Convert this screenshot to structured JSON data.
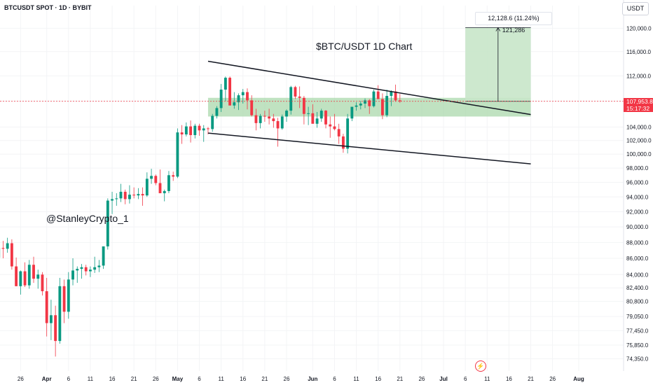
{
  "header": {
    "symbol_label": "BTCUSDT SPOT · 1D · BYBIT"
  },
  "currency_label": "USDT",
  "watermark": "@StanleyCrypto_1",
  "measure_label": "12,128.6 (11.24%) 121,286",
  "last_price": {
    "value": "107,953.8",
    "countdown": "15:17:32"
  },
  "replay_icon": "lightning-icon",
  "colors": {
    "up": "#089981",
    "down": "#f23645",
    "zone": "#a5d6a7",
    "target": "#c8e6c9"
  },
  "chart_data": {
    "type": "candlestick",
    "title": "$BTC/USDT 1D Chart",
    "y_scale": "log",
    "y_range": [
      73500,
      124000
    ],
    "y_ticks": [
      "120,000.0",
      "116,000.0",
      "112,000.0",
      "108,000.0",
      "104,000.0",
      "102,000.0",
      "100,000.0",
      "98,000.0",
      "96,000.0",
      "94,000.0",
      "92,000.0",
      "90,000.0",
      "88,000.0",
      "86,000.0",
      "84,000.0",
      "82,400.0",
      "80,800.0",
      "79,050.0",
      "77,450.0",
      "75,850.0",
      "74,350.0"
    ],
    "x_range": [
      "2025-03-20",
      "2025-08-10"
    ],
    "x_ticks": [
      {
        "label": "26",
        "date": "2025-03-26"
      },
      {
        "label": "Apr",
        "date": "2025-04-01"
      },
      {
        "label": "6",
        "date": "2025-04-06"
      },
      {
        "label": "11",
        "date": "2025-04-11"
      },
      {
        "label": "16",
        "date": "2025-04-16"
      },
      {
        "label": "21",
        "date": "2025-04-21"
      },
      {
        "label": "26",
        "date": "2025-04-26"
      },
      {
        "label": "May",
        "date": "2025-05-01"
      },
      {
        "label": "6",
        "date": "2025-05-06"
      },
      {
        "label": "11",
        "date": "2025-05-11"
      },
      {
        "label": "16",
        "date": "2025-05-16"
      },
      {
        "label": "21",
        "date": "2025-05-21"
      },
      {
        "label": "26",
        "date": "2025-05-26"
      },
      {
        "label": "Jun",
        "date": "2025-06-01"
      },
      {
        "label": "6",
        "date": "2025-06-06"
      },
      {
        "label": "11",
        "date": "2025-06-11"
      },
      {
        "label": "16",
        "date": "2025-06-16"
      },
      {
        "label": "21",
        "date": "2025-06-21"
      },
      {
        "label": "26",
        "date": "2025-06-26"
      },
      {
        "label": "Jul",
        "date": "2025-07-01"
      },
      {
        "label": "6",
        "date": "2025-07-06"
      },
      {
        "label": "11",
        "date": "2025-07-11"
      },
      {
        "label": "16",
        "date": "2025-07-16"
      },
      {
        "label": "21",
        "date": "2025-07-21"
      },
      {
        "label": "26",
        "date": "2025-07-26"
      },
      {
        "label": "Aug",
        "date": "2025-08-01"
      }
    ],
    "start_date": "2025-03-20",
    "last_price": 107953.8,
    "candles_ohlc": [
      [
        84200,
        86300,
        83800,
        86100
      ],
      [
        86100,
        89000,
        85600,
        87300
      ],
      [
        87300,
        88200,
        86000,
        87200
      ],
      [
        87200,
        88600,
        86700,
        87900
      ],
      [
        87900,
        88400,
        84600,
        85000
      ],
      [
        85000,
        86100,
        82600,
        82600
      ],
      [
        82600,
        84500,
        81600,
        84400
      ],
      [
        84400,
        85500,
        82500,
        82700
      ],
      [
        82700,
        85800,
        82300,
        85200
      ],
      [
        85200,
        86200,
        83000,
        83500
      ],
      [
        83500,
        84600,
        82300,
        84000
      ],
      [
        84000,
        84300,
        81500,
        82000
      ],
      [
        82000,
        83600,
        76800,
        78300
      ],
      [
        78300,
        81000,
        76400,
        79200
      ],
      [
        79200,
        80300,
        74600,
        76300
      ],
      [
        76300,
        83600,
        76000,
        82600
      ],
      [
        82600,
        83400,
        78300,
        79600
      ],
      [
        79600,
        84300,
        78800,
        83400
      ],
      [
        83400,
        86000,
        82700,
        84500
      ],
      [
        84500,
        85000,
        83000,
        84700
      ],
      [
        84700,
        85300,
        83500,
        84900
      ],
      [
        84900,
        85200,
        83900,
        84400
      ],
      [
        84400,
        85000,
        83700,
        84600
      ],
      [
        84600,
        86200,
        84200,
        84900
      ],
      [
        84900,
        85800,
        84300,
        85100
      ],
      [
        85100,
        87500,
        84700,
        87500
      ],
      [
        87500,
        93800,
        87100,
        93500
      ],
      [
        93500,
        94700,
        91700,
        93700
      ],
      [
        93700,
        94500,
        92800,
        93800
      ],
      [
        93800,
        95800,
        93300,
        94700
      ],
      [
        94700,
        95000,
        93000,
        93700
      ],
      [
        93700,
        95600,
        93100,
        94300
      ],
      [
        94300,
        95300,
        93800,
        94200
      ],
      [
        94200,
        95200,
        93700,
        94400
      ],
      [
        94400,
        95300,
        92800,
        94200
      ],
      [
        94200,
        97400,
        94000,
        96500
      ],
      [
        96500,
        97900,
        95800,
        96900
      ],
      [
        96900,
        97100,
        95600,
        95900
      ],
      [
        95900,
        97800,
        95300,
        94500
      ],
      [
        94500,
        95000,
        93400,
        94800
      ],
      [
        94800,
        97600,
        94500,
        97000
      ],
      [
        97000,
        97500,
        96200,
        96800
      ],
      [
        96800,
        103800,
        96600,
        103200
      ],
      [
        103200,
        104300,
        101500,
        102900
      ],
      [
        102900,
        104700,
        102600,
        104100
      ],
      [
        104100,
        105000,
        101700,
        102800
      ],
      [
        102800,
        104500,
        102300,
        104200
      ],
      [
        104200,
        104500,
        102700,
        103500
      ],
      [
        103500,
        104300,
        101800,
        103800
      ],
      [
        103800,
        104000,
        102900,
        103700
      ],
      [
        103700,
        106000,
        103300,
        105700
      ],
      [
        105700,
        107200,
        105300,
        106900
      ],
      [
        106900,
        110700,
        106300,
        109800
      ],
      [
        109800,
        111900,
        108000,
        111700
      ],
      [
        111700,
        111900,
        107800,
        107300
      ],
      [
        107300,
        109400,
        106800,
        107800
      ],
      [
        107800,
        109200,
        106600,
        108900
      ],
      [
        108900,
        109900,
        107600,
        109400
      ],
      [
        109400,
        110000,
        106700,
        108100
      ],
      [
        108100,
        108900,
        105600,
        105800
      ],
      [
        105800,
        106800,
        103500,
        104600
      ],
      [
        104600,
        106000,
        103800,
        105700
      ],
      [
        105700,
        106500,
        104800,
        105600
      ],
      [
        105600,
        106800,
        104400,
        105300
      ],
      [
        105300,
        106000,
        103900,
        104900
      ],
      [
        104900,
        105400,
        101100,
        103800
      ],
      [
        103800,
        105900,
        103600,
        105600
      ],
      [
        105600,
        106700,
        104800,
        106500
      ],
      [
        106500,
        110400,
        105900,
        110200
      ],
      [
        110200,
        110400,
        108300,
        108700
      ],
      [
        108700,
        110300,
        106900,
        108500
      ],
      [
        108500,
        108800,
        104400,
        106000
      ],
      [
        106000,
        107100,
        104300,
        106100
      ],
      [
        106100,
        107500,
        105000,
        104500
      ],
      [
        104500,
        106300,
        103900,
        105300
      ],
      [
        105300,
        106800,
        104800,
        106500
      ],
      [
        106500,
        106600,
        103800,
        104400
      ],
      [
        104400,
        105600,
        102400,
        104100
      ],
      [
        104100,
        106000,
        103500,
        103700
      ],
      [
        103700,
        104500,
        101500,
        102600
      ],
      [
        102600,
        103000,
        100200,
        100800
      ],
      [
        100800,
        106000,
        100100,
        105300
      ],
      [
        105300,
        107000,
        104900,
        107100
      ],
      [
        107100,
        107800,
        106500,
        107300
      ],
      [
        107300,
        108000,
        106700,
        107600
      ],
      [
        107600,
        108400,
        106900,
        108100
      ],
      [
        108100,
        108300,
        106000,
        107200
      ],
      [
        107200,
        109800,
        107000,
        109500
      ],
      [
        109500,
        110500,
        108900,
        108300
      ],
      [
        108300,
        109200,
        105200,
        105800
      ],
      [
        105800,
        109800,
        105500,
        108800
      ],
      [
        108800,
        109700,
        107200,
        109500
      ],
      [
        109500,
        110600,
        107900,
        108100
      ],
      [
        108100,
        109100,
        107700,
        107950
      ]
    ],
    "annotations": {
      "resistance_zone": {
        "from": "2025-05-08",
        "to": "2025-07-21",
        "low": 105600,
        "high": 108500
      },
      "target_box": {
        "from": "2025-07-06",
        "to": "2025-07-21",
        "low": 107950,
        "high": 120100
      },
      "upper_trendline": {
        "from": [
          "2025-05-08",
          114400
        ],
        "to": [
          "2025-07-21",
          105900
        ]
      },
      "lower_trendline": {
        "from": [
          "2025-05-08",
          103100
        ],
        "to": [
          "2025-07-21",
          98600
        ]
      }
    }
  }
}
